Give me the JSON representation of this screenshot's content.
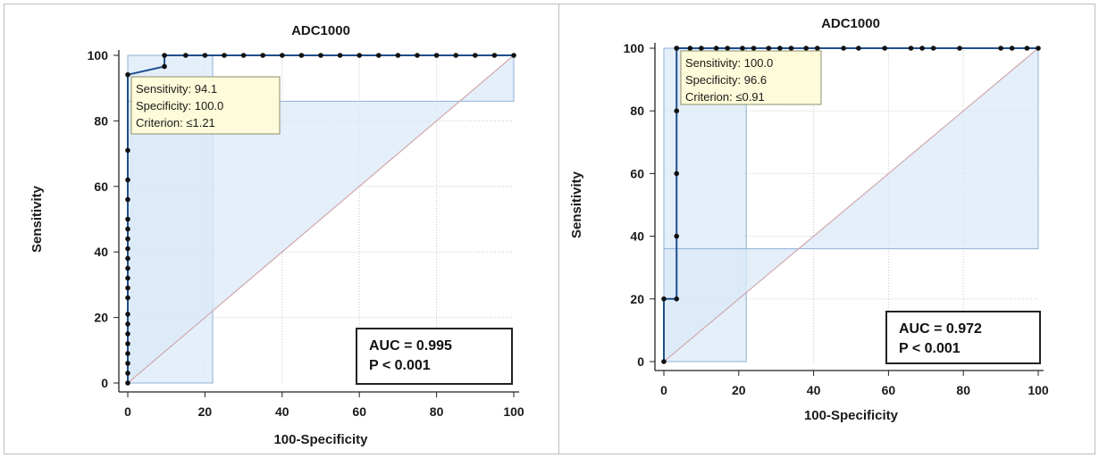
{
  "chart_data": [
    {
      "type": "line",
      "title": "ADC1000",
      "xlabel": "100-Specificity",
      "ylabel": "Sensitivity",
      "xlim": [
        0,
        100
      ],
      "ylim": [
        0,
        100
      ],
      "xticks": [
        "0",
        "20",
        "40",
        "60",
        "80",
        "100"
      ],
      "yticks": [
        "0",
        "20",
        "40",
        "60",
        "80",
        "100"
      ],
      "grid": true,
      "series": [
        {
          "x": [
            0,
            0,
            0,
            0,
            0,
            0,
            0,
            0,
            0,
            0,
            0,
            0,
            0,
            0,
            0,
            0,
            0,
            0,
            0,
            0,
            0,
            9.5,
            9.5,
            15,
            20,
            25,
            30,
            35,
            40,
            45,
            50,
            55,
            60,
            65,
            70,
            75,
            80,
            85,
            90,
            95,
            100
          ],
          "y": [
            0,
            3,
            6,
            9,
            12,
            15,
            18,
            21,
            26,
            29,
            32,
            35,
            38,
            41,
            44,
            47,
            50,
            56,
            62,
            71,
            94.1,
            96.6,
            100,
            100,
            100,
            100,
            100,
            100,
            100,
            100,
            100,
            100,
            100,
            100,
            100,
            100,
            100,
            100,
            100,
            100,
            100
          ]
        }
      ],
      "confidence_band": {
        "lower": [
          [
            0,
            0
          ],
          [
            0,
            86
          ],
          [
            100,
            86
          ],
          [
            100,
            100
          ]
        ],
        "upper": [
          [
            0,
            0
          ],
          [
            0,
            100
          ],
          [
            22,
            100
          ],
          [
            22,
            0
          ]
        ]
      },
      "tooltip": {
        "sensitivity": "Sensitivity: 94.1",
        "specificity": "Specificity: 100.0",
        "criterion": "Criterion: ≤1.21"
      },
      "stats": {
        "auc": "AUC = 0.995",
        "p": "P < 0.001"
      }
    },
    {
      "type": "line",
      "title": "ADC1000",
      "xlabel": "100-Specificity",
      "ylabel": "Sensitivity",
      "xlim": [
        0,
        100
      ],
      "ylim": [
        0,
        100
      ],
      "xticks": [
        "0",
        "20",
        "40",
        "60",
        "80",
        "100"
      ],
      "yticks": [
        "0",
        "20",
        "40",
        "60",
        "80",
        "100"
      ],
      "grid": true,
      "series": [
        {
          "x": [
            0,
            0,
            3.4,
            3.4,
            3.4,
            3.4,
            3.4,
            3.4,
            7,
            10,
            14,
            17,
            21,
            24,
            28,
            31,
            34,
            38,
            41,
            48,
            52,
            59,
            66,
            69,
            72,
            79,
            90,
            93,
            97,
            100
          ],
          "y": [
            0,
            20,
            20,
            40,
            60,
            80,
            100,
            100,
            100,
            100,
            100,
            100,
            100,
            100,
            100,
            100,
            100,
            100,
            100,
            100,
            100,
            100,
            100,
            100,
            100,
            100,
            100,
            100,
            100,
            100
          ]
        }
      ],
      "confidence_band": {
        "lower": [
          [
            0,
            0
          ],
          [
            0,
            36
          ],
          [
            100,
            36
          ],
          [
            100,
            100
          ]
        ],
        "upper": [
          [
            0,
            0
          ],
          [
            0,
            100
          ],
          [
            22,
            100
          ],
          [
            22,
            0
          ]
        ]
      },
      "tooltip": {
        "sensitivity": "Sensitivity: 100.0",
        "specificity": "Specificity: 96.6",
        "criterion": "Criterion: ≤0.91"
      },
      "stats": {
        "auc": "AUC = 0.972",
        "p": "P < 0.001"
      }
    }
  ]
}
